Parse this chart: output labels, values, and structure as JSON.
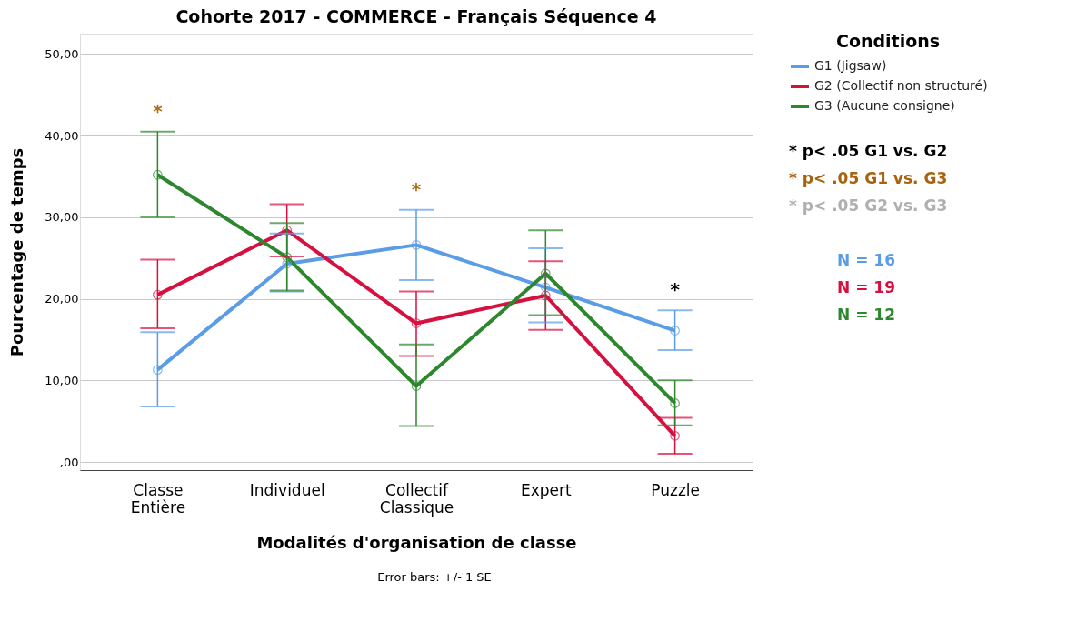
{
  "chart_data": {
    "type": "line",
    "title": "Cohorte 2017 - COMMERCE - Français Séquence 4",
    "xlabel": "Modalités d'organisation de classe",
    "ylabel": "Pourcentage de temps",
    "legend_title": "Conditions",
    "categories": [
      "Classe Entière",
      "Individuel",
      "Collectif Classique",
      "Expert",
      "Puzzle"
    ],
    "series": [
      {
        "name": "G1 (Jigsaw)",
        "color": "#5b9ce6",
        "values": [
          11.3,
          24.3,
          26.6,
          21.4,
          16.1
        ],
        "errors": [
          [
            6.8,
            15.9
          ],
          [
            20.9,
            28.0
          ],
          [
            22.3,
            30.9
          ],
          [
            17.1,
            26.2
          ],
          [
            13.7,
            18.6
          ]
        ]
      },
      {
        "name": "G2 (Collectif non structuré)",
        "color": "#d6103f",
        "values": [
          20.5,
          28.4,
          17.0,
          20.4,
          3.2
        ],
        "errors": [
          [
            16.4,
            24.8
          ],
          [
            25.2,
            31.6
          ],
          [
            13.0,
            20.9
          ],
          [
            16.2,
            24.6
          ],
          [
            1.0,
            5.4
          ]
        ]
      },
      {
        "name": "G3 (Aucune consigne)",
        "color": "#2e862e",
        "values": [
          35.2,
          25.1,
          9.3,
          23.1,
          7.2
        ],
        "errors": [
          [
            30.0,
            40.5
          ],
          [
            21.0,
            29.3
          ],
          [
            4.4,
            14.4
          ],
          [
            18.0,
            28.4
          ],
          [
            4.5,
            10.0
          ]
        ]
      }
    ],
    "ylim": [
      -1,
      52.5
    ],
    "yticks": [
      {
        "value": 0,
        "label": ",00"
      },
      {
        "value": 10,
        "label": "10,00"
      },
      {
        "value": 20,
        "label": "20,00"
      },
      {
        "value": 30,
        "label": "30,00"
      },
      {
        "value": 40,
        "label": "40,00"
      },
      {
        "value": 50,
        "label": "50,00"
      }
    ],
    "grid": "y",
    "legend": "top right",
    "marker": "circle",
    "line_style": "solid",
    "annotations": [
      {
        "text": "*",
        "x": "Classe Entière",
        "y": 40.5
      },
      {
        "text": "*",
        "x": "Collectif Classique",
        "y": 30.9
      },
      {
        "text": "*",
        "x": "Puzzle",
        "y": 18.6
      },
      "* p< .05 G1 vs. G2",
      "* p< .05 G1 vs. G3",
      "* p< .05 G2 vs. G3",
      "N = 16",
      "N = 19",
      "N = 12",
      "Error bars: +/- 1 SE"
    ]
  }
}
